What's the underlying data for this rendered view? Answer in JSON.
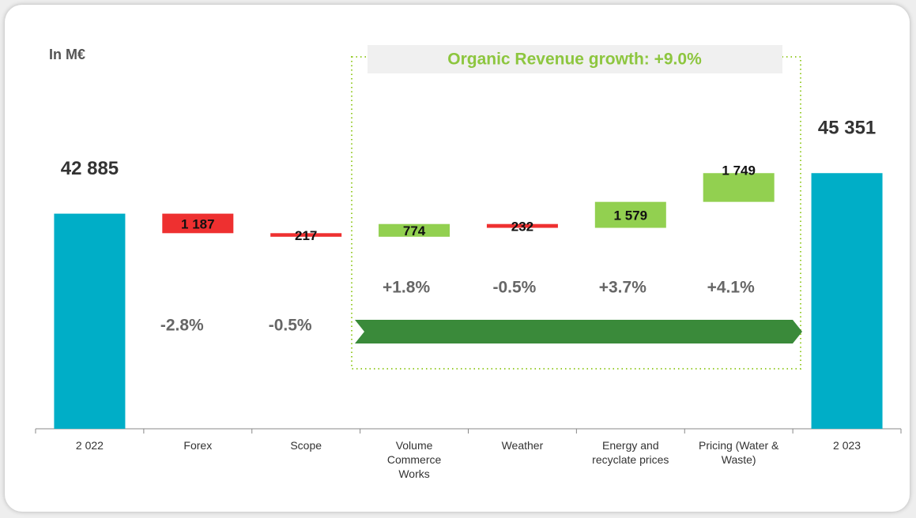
{
  "chart_data": {
    "type": "waterfall",
    "unit_label": "In M€",
    "organic_title": "Organic Revenue growth: +9.0%",
    "categories": [
      "2 022",
      "Forex",
      "Scope",
      "Volume Commerce Works",
      "Weather",
      "Energy and recyclate prices",
      "Pricing (Water & Waste)",
      "2 023"
    ],
    "values": [
      42885,
      -1187,
      -217,
      774,
      -232,
      1579,
      1749,
      45351
    ],
    "value_labels": [
      "42 885",
      "1 187",
      "217",
      "774",
      "232",
      "1 579",
      "1 749",
      "45 351"
    ],
    "pct_labels": [
      null,
      "-2.8%",
      "-0.5%",
      "+1.8%",
      "-0.5%",
      "+3.7%",
      "+4.1%",
      null
    ],
    "totals": [
      0,
      7
    ],
    "colors": {
      "total": "#00aec7",
      "increase": "#92d050",
      "decrease": "#ee3030"
    },
    "ylim": [
      29800,
      53000
    ]
  }
}
